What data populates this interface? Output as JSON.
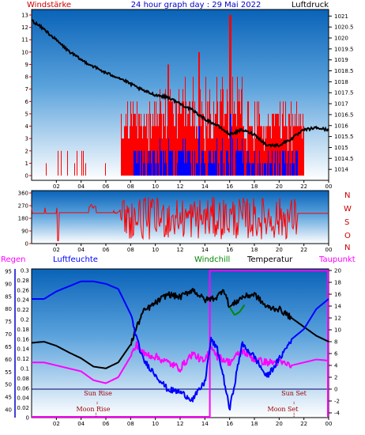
{
  "chart_data": [
    {
      "type": "line",
      "title": "24 hour graph day : 29 Mai 2022",
      "left_label": "Windstärke",
      "right_label": "Luftdruck",
      "colors": {
        "wind": "#ff0000",
        "gust": "#0000ff",
        "pressure": "#000000",
        "left_label": "#cc0000",
        "title": "#0000cc",
        "right_label": "#000000"
      },
      "x_ticks": [
        "02",
        "04",
        "06",
        "08",
        "10",
        "12",
        "14",
        "16",
        "18",
        "20",
        "22",
        "00"
      ],
      "y_left_ticks": [
        "0",
        "1",
        "2",
        "3",
        "4",
        "5",
        "6",
        "7",
        "8",
        "9",
        "10",
        "11",
        "12",
        "13"
      ],
      "y_right_ticks": [
        "1014",
        "1014.5",
        "1015",
        "1015.5",
        "1016",
        "1016.5",
        "1017",
        "1017.5",
        "1018",
        "1018.5",
        "1019",
        "1019.5",
        "1020",
        "1020.5",
        "1021"
      ],
      "ylim_left": [
        0,
        13
      ],
      "ylim_right": [
        1013.5,
        1021.3
      ],
      "series": [
        {
          "name": "Luftdruck",
          "axis": "right",
          "x": [
            0,
            1,
            2,
            3,
            4,
            5,
            6,
            7,
            8,
            9,
            10,
            11,
            12,
            13,
            14,
            15,
            16,
            17,
            18,
            19,
            20,
            21,
            22,
            23,
            24
          ],
          "values": [
            1020.8,
            1020.4,
            1019.9,
            1019.4,
            1019.0,
            1018.7,
            1018.4,
            1018.2,
            1017.9,
            1017.6,
            1017.4,
            1017.3,
            1017.0,
            1016.7,
            1016.3,
            1016.0,
            1015.6,
            1015.8,
            1015.6,
            1015.1,
            1015.1,
            1015.4,
            1015.8,
            1015.9,
            1015.8
          ]
        }
      ]
    },
    {
      "type": "line",
      "right_label": [
        "N",
        "W",
        "S",
        "O",
        "N"
      ],
      "colors": {
        "direction": "#ff0000"
      },
      "x_ticks": [
        "02",
        "04",
        "06",
        "08",
        "10",
        "12",
        "14",
        "16",
        "18",
        "20",
        "22",
        "00"
      ],
      "y_ticks": [
        "0",
        "90",
        "180",
        "270",
        "360"
      ],
      "ylim": [
        0,
        360
      ]
    },
    {
      "type": "line",
      "labels": {
        "regen": "Regen",
        "luftfeuchte": "Luftfeuchte",
        "windchill": "Windchill",
        "temperatur": "Temperatur",
        "taupunkt": "Taupunkt"
      },
      "colors": {
        "regen": "#ff00ff",
        "luftfeuchte": "#0000ff",
        "windchill": "#008800",
        "temperatur": "#000000",
        "taupunkt": "#ff00ff"
      },
      "annotations": {
        "sun_rise": "Sun Rise",
        "sun_set": "Sun Set",
        "moon_rise": "Moon Rise",
        "moon_set": "Moon Set"
      },
      "x_ticks": [
        "02",
        "04",
        "06",
        "08",
        "10",
        "12",
        "14",
        "16",
        "18",
        "20",
        "22",
        "00"
      ],
      "y_rain_ticks": [
        "0",
        "0.02",
        "0.04",
        "0.06",
        "0.08",
        "0.1",
        "0.12",
        "0.14",
        "0.16",
        "0.18",
        "0.2",
        "0.22",
        "0.24",
        "0.26",
        "0.28",
        "0.3"
      ],
      "y_humidity_ticks": [
        "40",
        "45",
        "50",
        "55",
        "60",
        "65",
        "70",
        "75",
        "80",
        "85",
        "90",
        "95"
      ],
      "y_temp_ticks": [
        "-4",
        "-2",
        "0",
        "2",
        "4",
        "6",
        "8",
        "10",
        "12",
        "14",
        "16",
        "18",
        "20"
      ],
      "ylim_rain": [
        0,
        0.3
      ],
      "ylim_humidity": [
        40,
        95
      ],
      "ylim_temp": [
        -4,
        20
      ],
      "rain_total_from": 14.4,
      "series": [
        {
          "name": "Temperatur",
          "axis": "temp",
          "x": [
            0,
            1,
            2,
            3,
            4,
            5,
            6,
            7,
            8,
            8.5,
            9,
            10,
            11,
            12,
            13,
            14,
            15,
            15.5,
            16,
            17,
            18,
            19,
            20,
            21,
            22,
            23,
            24
          ],
          "values": [
            7.8,
            8.0,
            7.3,
            6.2,
            5.2,
            3.8,
            3.5,
            4.5,
            7.5,
            10.5,
            13.0,
            14.5,
            16.0,
            15.5,
            16.8,
            15.0,
            15.5,
            17.0,
            13.8,
            15.5,
            16.0,
            13.8,
            13.5,
            12.0,
            10.5,
            9.0,
            8.0
          ]
        },
        {
          "name": "Windchill",
          "axis": "temp",
          "x": [
            16,
            16.4,
            16.8,
            17.2
          ],
          "values": [
            13.8,
            12.5,
            13.0,
            14.2
          ]
        },
        {
          "name": "Taupunkt",
          "axis": "temp",
          "x": [
            0,
            1,
            2,
            3,
            4,
            5,
            6,
            7,
            8,
            8.5,
            9,
            10,
            11,
            12,
            13,
            14,
            14.5,
            15,
            16,
            17,
            18,
            19,
            20,
            21,
            22,
            23,
            24
          ],
          "values": [
            4.5,
            4.5,
            4.0,
            3.5,
            3.0,
            1.5,
            1.0,
            2.0,
            5.5,
            7.5,
            6.0,
            5.5,
            4.5,
            3.5,
            6.0,
            4.5,
            7.5,
            5.5,
            4.5,
            6.5,
            5.0,
            4.5,
            4.5,
            4.0,
            4.5,
            5.0,
            4.8
          ]
        },
        {
          "name": "Luftfeuchte",
          "axis": "humidity",
          "x": [
            0,
            1,
            2,
            3,
            4,
            5,
            6,
            7,
            8,
            8.5,
            9,
            10,
            11,
            12,
            13,
            14,
            14.5,
            15,
            15.5,
            16,
            17,
            18,
            19,
            20,
            21,
            22,
            23,
            24
          ],
          "values": [
            84,
            84,
            87,
            89,
            91,
            91,
            90,
            88,
            78,
            68,
            60,
            54,
            48,
            47,
            44,
            51,
            68,
            64,
            53,
            40,
            66,
            61,
            53,
            60,
            68,
            72,
            80,
            84
          ]
        }
      ]
    }
  ]
}
